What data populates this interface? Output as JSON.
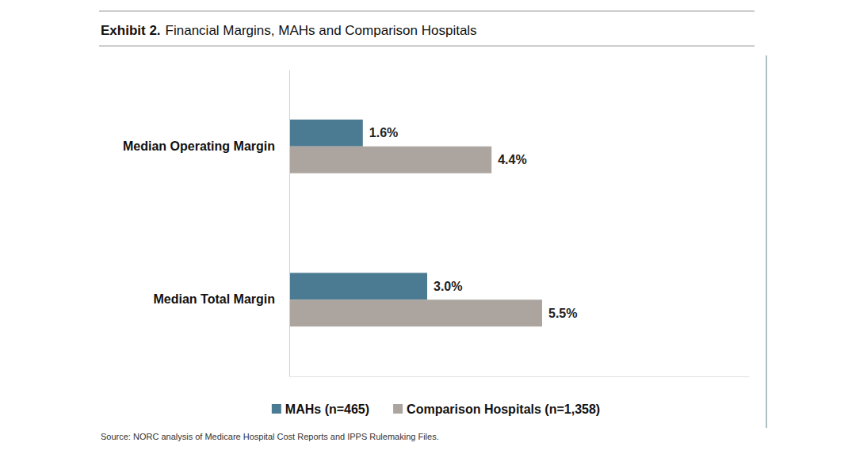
{
  "chart_data": {
    "type": "bar",
    "orientation": "horizontal",
    "title": "Exhibit 2.",
    "subtitle": "Financial Margins, MAHs and Comparison Hospitals",
    "source": "Source: NORC analysis of Medicare Hospital Cost Reports and IPPS Rulemaking Files.",
    "categories": [
      "Median Operating Margin",
      "Median Total Margin"
    ],
    "series": [
      {
        "name": "MAHs (n=465)",
        "color": "#4b7b92",
        "values": [
          1.6,
          3.0
        ],
        "value_labels": [
          "1.6%",
          "3.0%"
        ]
      },
      {
        "name": "Comparison Hospitals (n=1,358)",
        "color": "#aca59f",
        "values": [
          4.4,
          5.5
        ],
        "value_labels": [
          "4.4%",
          "5.5%"
        ]
      }
    ],
    "xlim": [
      0,
      10
    ],
    "data_labels": true,
    "tick_labels": false,
    "grid": false,
    "legend": "bottom"
  }
}
